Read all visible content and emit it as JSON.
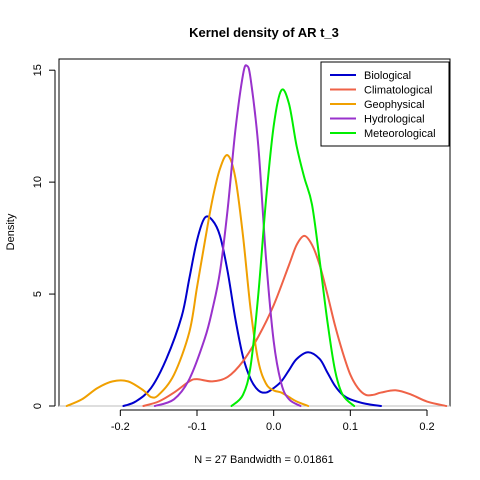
{
  "chart_data": {
    "type": "line",
    "title": "Kernel density of AR t_3",
    "xlabel": "N = 27   Bandwidth = 0.01861",
    "ylabel": "Density",
    "xlim": [
      -0.28,
      0.23
    ],
    "ylim": [
      0,
      15.5
    ],
    "x_ticks": [
      -0.2,
      -0.1,
      0.0,
      0.1,
      0.2
    ],
    "x_tick_labels": [
      "-0.2",
      "-0.1",
      "0.0",
      "0.1",
      "0.2"
    ],
    "y_ticks": [
      0,
      5,
      10,
      15
    ],
    "y_tick_labels": [
      "0",
      "5",
      "10",
      "15"
    ],
    "zero_line": true,
    "grid": false,
    "legend_position": "top-right",
    "series": [
      {
        "name": "Biological",
        "color": "#0000cd",
        "points": [
          [
            -0.196,
            0.0
          ],
          [
            -0.18,
            0.2
          ],
          [
            -0.16,
            0.8
          ],
          [
            -0.14,
            2.1
          ],
          [
            -0.12,
            4.0
          ],
          [
            -0.11,
            5.7
          ],
          [
            -0.1,
            7.4
          ],
          [
            -0.09,
            8.4
          ],
          [
            -0.08,
            8.3
          ],
          [
            -0.07,
            7.6
          ],
          [
            -0.06,
            6.0
          ],
          [
            -0.05,
            3.9
          ],
          [
            -0.04,
            2.2
          ],
          [
            -0.03,
            1.2
          ],
          [
            -0.02,
            0.7
          ],
          [
            -0.01,
            0.6
          ],
          [
            0.0,
            0.8
          ],
          [
            0.01,
            1.1
          ],
          [
            0.02,
            1.6
          ],
          [
            0.03,
            2.1
          ],
          [
            0.045,
            2.4
          ],
          [
            0.06,
            2.1
          ],
          [
            0.07,
            1.5
          ],
          [
            0.08,
            0.9
          ],
          [
            0.09,
            0.5
          ],
          [
            0.1,
            0.3
          ],
          [
            0.12,
            0.1
          ],
          [
            0.14,
            0.0
          ]
        ]
      },
      {
        "name": "Climatological",
        "color": "#ef6247",
        "points": [
          [
            -0.17,
            0.0
          ],
          [
            -0.15,
            0.2
          ],
          [
            -0.13,
            0.6
          ],
          [
            -0.11,
            1.1
          ],
          [
            -0.1,
            1.2
          ],
          [
            -0.08,
            1.1
          ],
          [
            -0.06,
            1.3
          ],
          [
            -0.04,
            2.0
          ],
          [
            -0.02,
            3.1
          ],
          [
            0.0,
            4.5
          ],
          [
            0.02,
            6.3
          ],
          [
            0.03,
            7.2
          ],
          [
            0.04,
            7.6
          ],
          [
            0.05,
            7.2
          ],
          [
            0.06,
            6.3
          ],
          [
            0.07,
            5.0
          ],
          [
            0.08,
            3.6
          ],
          [
            0.09,
            2.4
          ],
          [
            0.1,
            1.4
          ],
          [
            0.11,
            0.8
          ],
          [
            0.12,
            0.5
          ],
          [
            0.13,
            0.5
          ],
          [
            0.14,
            0.6
          ],
          [
            0.16,
            0.7
          ],
          [
            0.18,
            0.5
          ],
          [
            0.2,
            0.2
          ],
          [
            0.225,
            0.0
          ]
        ]
      },
      {
        "name": "Geophysical",
        "color": "#f0a000",
        "points": [
          [
            -0.27,
            0.0
          ],
          [
            -0.25,
            0.3
          ],
          [
            -0.23,
            0.8
          ],
          [
            -0.21,
            1.1
          ],
          [
            -0.19,
            1.1
          ],
          [
            -0.17,
            0.7
          ],
          [
            -0.16,
            0.4
          ],
          [
            -0.15,
            0.5
          ],
          [
            -0.13,
            1.4
          ],
          [
            -0.11,
            3.3
          ],
          [
            -0.1,
            5.3
          ],
          [
            -0.09,
            7.3
          ],
          [
            -0.08,
            9.2
          ],
          [
            -0.07,
            10.6
          ],
          [
            -0.06,
            11.2
          ],
          [
            -0.05,
            10.2
          ],
          [
            -0.04,
            7.6
          ],
          [
            -0.03,
            4.3
          ],
          [
            -0.02,
            2.0
          ],
          [
            -0.01,
            1.0
          ],
          [
            0.0,
            0.7
          ],
          [
            0.01,
            0.6
          ],
          [
            0.02,
            0.4
          ],
          [
            0.03,
            0.2
          ],
          [
            0.045,
            0.0
          ]
        ]
      },
      {
        "name": "Hydrological",
        "color": "#9932cc",
        "points": [
          [
            -0.155,
            0.0
          ],
          [
            -0.13,
            0.3
          ],
          [
            -0.11,
            1.2
          ],
          [
            -0.09,
            3.0
          ],
          [
            -0.08,
            4.3
          ],
          [
            -0.07,
            6.0
          ],
          [
            -0.06,
            8.8
          ],
          [
            -0.05,
            12.3
          ],
          [
            -0.04,
            14.8
          ],
          [
            -0.035,
            15.2
          ],
          [
            -0.03,
            14.6
          ],
          [
            -0.02,
            11.6
          ],
          [
            -0.01,
            6.6
          ],
          [
            0.0,
            2.9
          ],
          [
            0.01,
            1.0
          ],
          [
            0.02,
            0.3
          ],
          [
            0.035,
            0.0
          ]
        ]
      },
      {
        "name": "Meteorological",
        "color": "#00ee00",
        "points": [
          [
            -0.055,
            0.0
          ],
          [
            -0.04,
            0.5
          ],
          [
            -0.03,
            1.8
          ],
          [
            -0.02,
            5.0
          ],
          [
            -0.01,
            9.2
          ],
          [
            0.0,
            12.5
          ],
          [
            0.01,
            14.1
          ],
          [
            0.02,
            13.5
          ],
          [
            0.03,
            11.6
          ],
          [
            0.04,
            10.2
          ],
          [
            0.05,
            9.0
          ],
          [
            0.06,
            6.5
          ],
          [
            0.07,
            3.8
          ],
          [
            0.08,
            1.6
          ],
          [
            0.09,
            0.5
          ],
          [
            0.105,
            0.0
          ]
        ]
      }
    ]
  }
}
